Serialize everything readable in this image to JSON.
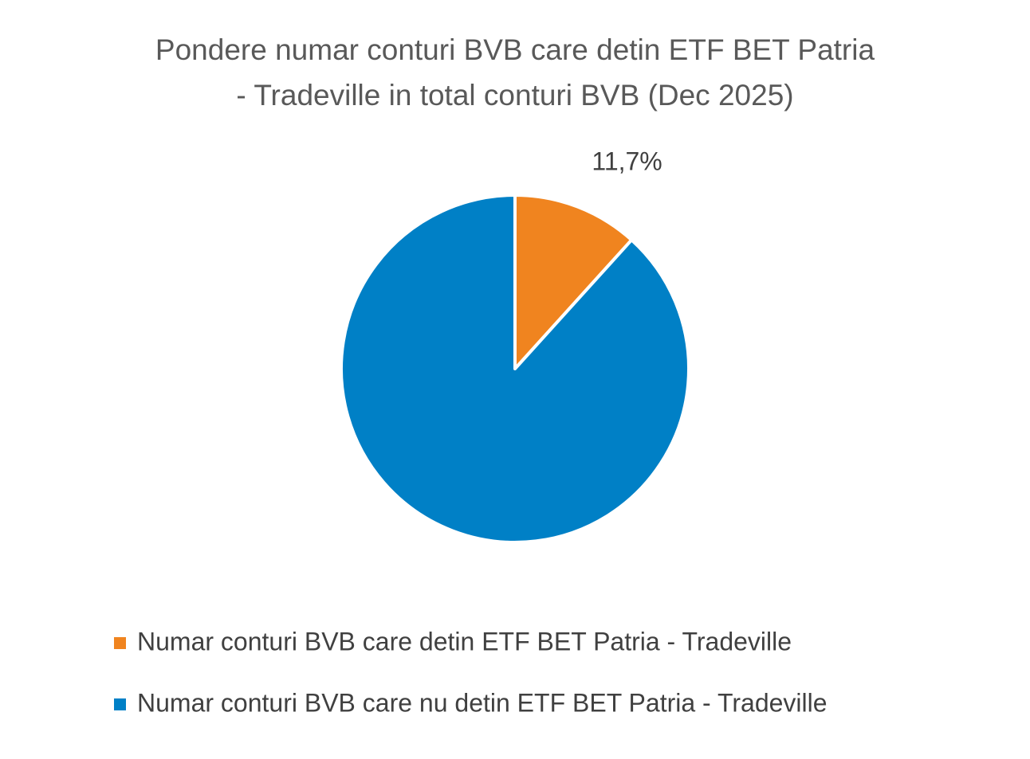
{
  "chart_data": {
    "type": "pie",
    "title": [
      "Pondere numar conturi BVB care detin ETF BET Patria",
      "- Tradeville in total conturi BVB (Dec 2025)"
    ],
    "categories": [
      "Numar conturi BVB care detin ETF BET Patria - Tradeville",
      "Numar conturi BVB care nu detin ETF BET Patria - Tradeville"
    ],
    "values": [
      11.7,
      88.3
    ],
    "value_labels": [
      "11,7%",
      null
    ],
    "colors": [
      "#f0841f",
      "#0080c6"
    ]
  }
}
